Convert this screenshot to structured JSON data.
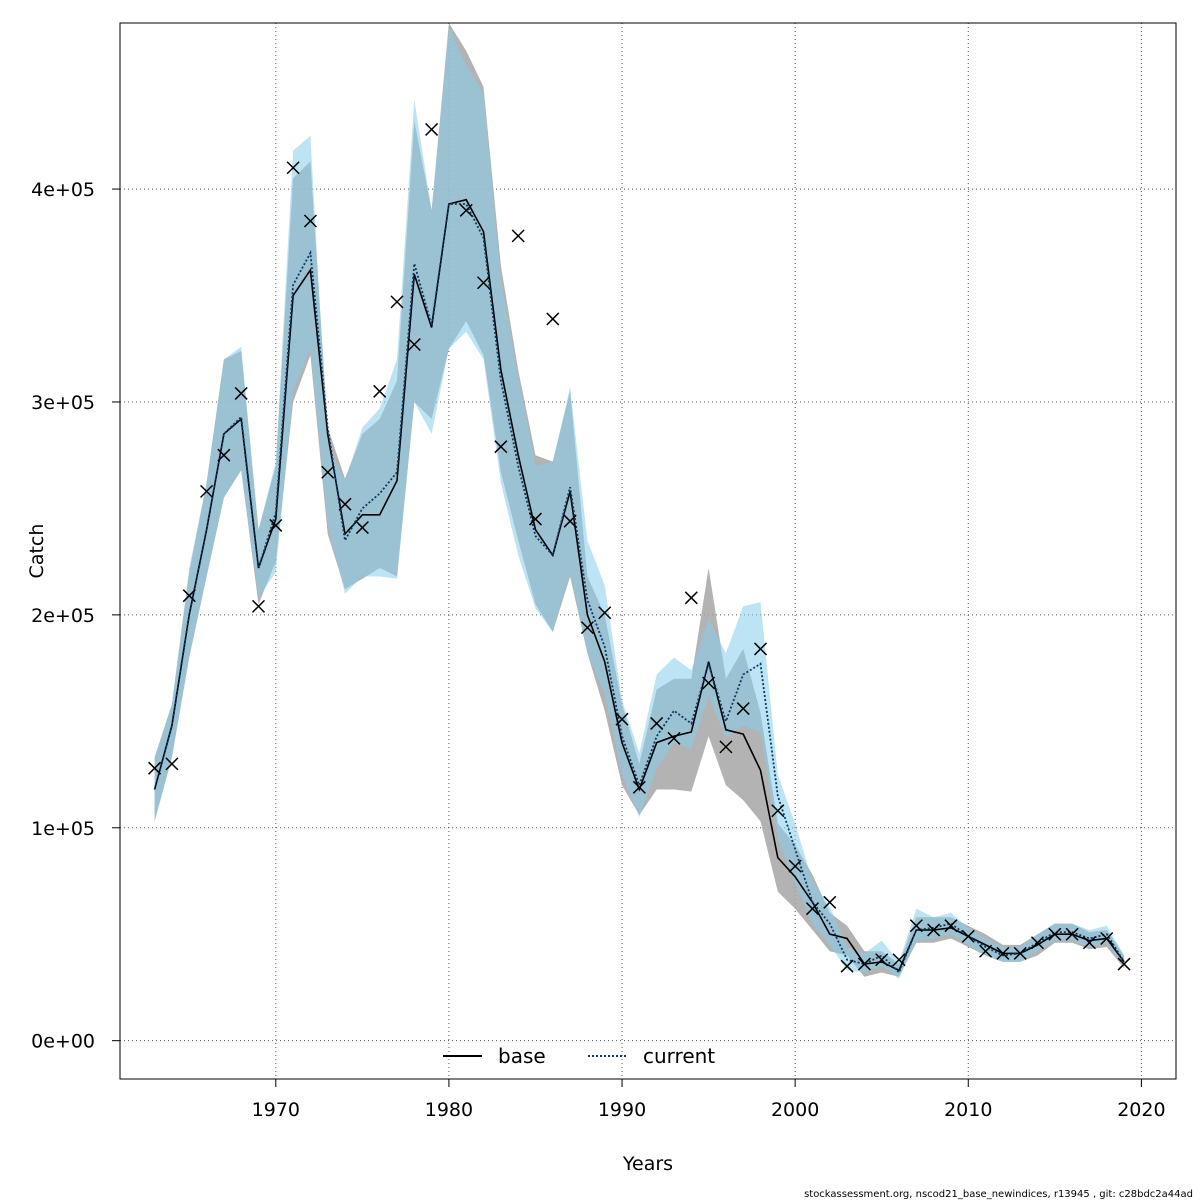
{
  "chart_data": {
    "type": "line",
    "xlabel": "Years",
    "ylabel": "Catch",
    "xlim": [
      1961,
      2022
    ],
    "ylim": [
      -18000,
      478000
    ],
    "xticks": [
      1970,
      1980,
      1990,
      2000,
      2010,
      2020
    ],
    "yticks": [
      0,
      100000,
      200000,
      300000,
      400000
    ],
    "ytick_labels": [
      "0e+00",
      "1e+05",
      "2e+05",
      "3e+05",
      "4e+05"
    ],
    "grid": true,
    "legend_position": "bottom-center",
    "x": [
      1963,
      1964,
      1965,
      1966,
      1967,
      1968,
      1969,
      1970,
      1971,
      1972,
      1973,
      1974,
      1975,
      1976,
      1977,
      1978,
      1979,
      1980,
      1981,
      1982,
      1983,
      1984,
      1985,
      1986,
      1987,
      1988,
      1989,
      1990,
      1991,
      1992,
      1993,
      1994,
      1995,
      1996,
      1997,
      1998,
      1999,
      2000,
      2001,
      2002,
      2003,
      2004,
      2005,
      2006,
      2007,
      2008,
      2009,
      2010,
      2011,
      2012,
      2013,
      2014,
      2015,
      2016,
      2017,
      2018,
      2019
    ],
    "observed": [
      128000,
      130000,
      209000,
      258000,
      275000,
      304000,
      204000,
      242000,
      410000,
      385000,
      267000,
      252000,
      241000,
      305000,
      347000,
      327000,
      428000,
      null,
      390000,
      356000,
      279000,
      378000,
      245000,
      339000,
      244000,
      194000,
      201000,
      151000,
      119000,
      149000,
      142000,
      208000,
      168000,
      138000,
      156000,
      184000,
      108000,
      82000,
      62000,
      65000,
      35000,
      36000,
      38000,
      38000,
      54000,
      52000,
      54000,
      49000,
      42000,
      41000,
      41000,
      46000,
      50000,
      50000,
      46000,
      48000,
      36000
    ],
    "colors": {
      "base_line": "#000000",
      "base_band": "#a6a6a6",
      "current_line": "#0a3a66",
      "current_band": "#87ceeb",
      "observed": "#000000"
    },
    "series": [
      {
        "name": "base",
        "style": "solid",
        "values": [
          118000,
          148000,
          200000,
          240000,
          285000,
          292000,
          222000,
          245000,
          350000,
          362000,
          285000,
          238000,
          247000,
          247000,
          263000,
          360000,
          335000,
          393000,
          395000,
          380000,
          315000,
          275000,
          240000,
          228000,
          258000,
          200000,
          178000,
          140000,
          118000,
          140000,
          143000,
          145000,
          178000,
          146000,
          144000,
          127000,
          86000,
          77000,
          65000,
          50000,
          48000,
          36000,
          37000,
          33000,
          52000,
          52000,
          53000,
          49000,
          45000,
          41000,
          41000,
          45000,
          50000,
          50000,
          47000,
          48000,
          37000
        ],
        "lower": [
          103000,
          133000,
          180000,
          218000,
          255000,
          268000,
          205000,
          225000,
          300000,
          322000,
          238000,
          212000,
          217000,
          222000,
          218000,
          300000,
          292000,
          325000,
          338000,
          322000,
          267000,
          235000,
          205000,
          192000,
          218000,
          182000,
          155000,
          120000,
          106000,
          118000,
          118000,
          117000,
          143000,
          120000,
          113000,
          103000,
          70000,
          62000,
          52000,
          42000,
          40000,
          30000,
          32000,
          30000,
          46000,
          46000,
          48000,
          44000,
          40000,
          37000,
          37000,
          40000,
          46000,
          46000,
          43000,
          44000,
          34000
        ],
        "upper": [
          133000,
          158000,
          220000,
          262000,
          320000,
          324000,
          240000,
          270000,
          405000,
          413000,
          288000,
          264000,
          285000,
          292000,
          310000,
          432000,
          390000,
          478000,
          465000,
          448000,
          364000,
          315000,
          275000,
          272000,
          305000,
          218000,
          200000,
          158000,
          130000,
          165000,
          170000,
          170000,
          222000,
          170000,
          184000,
          154000,
          102000,
          92000,
          78000,
          60000,
          54000,
          42000,
          42000,
          36000,
          58000,
          58000,
          58000,
          54000,
          50000,
          45000,
          45000,
          50000,
          55000,
          55000,
          51000,
          52000,
          40000
        ]
      },
      {
        "name": "current",
        "style": "dotted",
        "values": [
          118000,
          148000,
          200000,
          240000,
          285000,
          293000,
          222000,
          248000,
          355000,
          370000,
          288000,
          235000,
          250000,
          257000,
          267000,
          365000,
          336000,
          393000,
          393000,
          377000,
          310000,
          270000,
          237000,
          228000,
          260000,
          207000,
          185000,
          143000,
          120000,
          143000,
          155000,
          149000,
          177000,
          150000,
          172000,
          177000,
          115000,
          90000,
          65000,
          55000,
          38000,
          36000,
          40000,
          32000,
          52000,
          53000,
          55000,
          49000,
          44000,
          40000,
          41000,
          46000,
          51000,
          51000,
          48000,
          50000,
          37000
        ],
        "lower": [
          103000,
          133000,
          180000,
          218000,
          255000,
          268000,
          208000,
          220000,
          305000,
          325000,
          242000,
          210000,
          218000,
          218000,
          217000,
          300000,
          285000,
          325000,
          333000,
          320000,
          262000,
          228000,
          203000,
          192000,
          220000,
          182000,
          163000,
          125000,
          105000,
          128000,
          140000,
          137000,
          162000,
          142000,
          148000,
          145000,
          95000,
          74000,
          55000,
          45000,
          33000,
          32000,
          35000,
          29000,
          47000,
          48000,
          50000,
          45000,
          40000,
          37000,
          37000,
          42000,
          47000,
          47000,
          44000,
          46000,
          34000
        ],
        "upper": [
          133000,
          158000,
          222000,
          262000,
          320000,
          326000,
          240000,
          272000,
          418000,
          425000,
          280000,
          263000,
          288000,
          297000,
          320000,
          442000,
          390000,
          476000,
          458000,
          445000,
          358000,
          312000,
          270000,
          272000,
          307000,
          235000,
          214000,
          160000,
          135000,
          172000,
          180000,
          174000,
          198000,
          182000,
          204000,
          206000,
          125000,
          102000,
          75000,
          63000,
          44000,
          41000,
          47000,
          37000,
          62000,
          58000,
          60000,
          53000,
          48000,
          44000,
          44000,
          50000,
          55000,
          55000,
          52000,
          54000,
          40000
        ]
      }
    ],
    "footer": "stockassessment.org, nscod21_base_newindices, r13945 , git: c28bdc2a44ad"
  }
}
